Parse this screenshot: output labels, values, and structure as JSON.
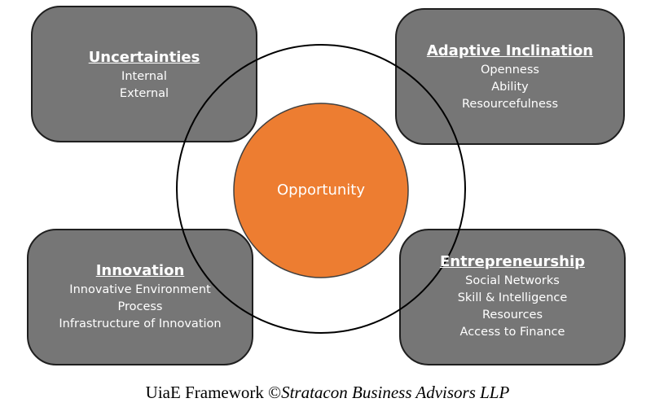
{
  "diagram": {
    "center": {
      "label": "Opportunity",
      "fill": "#ED7D31"
    },
    "boxes": {
      "top_left": {
        "title": "Uncertainties",
        "items": [
          "Internal",
          "External"
        ]
      },
      "top_right": {
        "title": "Adaptive Inclination",
        "items": [
          "Openness",
          "Ability",
          "Resourcefulness"
        ]
      },
      "bottom_left": {
        "title": "Innovation",
        "items": [
          "Innovative Environment",
          "Process",
          "Infrastructure of Innovation"
        ]
      },
      "bottom_right": {
        "title": "Entrepreneurship",
        "items": [
          "Social Networks",
          "Skill & Intelligence",
          "Resources",
          "Access to Finance"
        ]
      }
    },
    "box_fill": "#767676",
    "ring_color": "#000000"
  },
  "caption": {
    "prefix": "UiaE Framework ©",
    "organization": "Stratacon Business Advisors LLP"
  }
}
